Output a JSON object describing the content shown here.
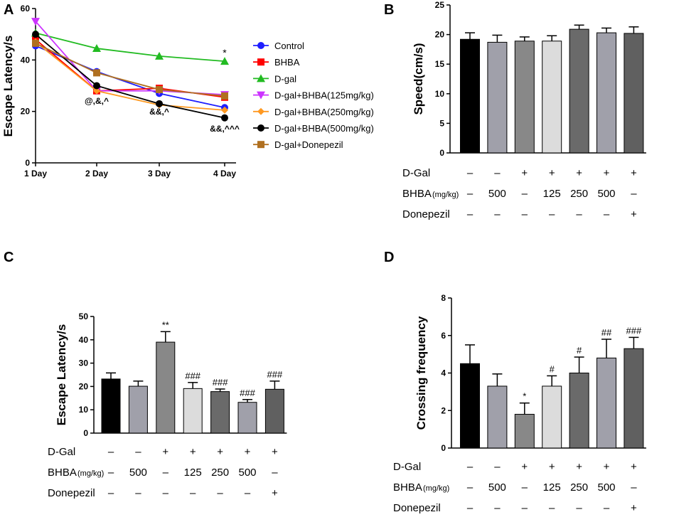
{
  "chart_data": [
    {
      "panel": "A",
      "type": "line",
      "ylabel": "Escape Latency/s",
      "ylim": [
        0,
        60
      ],
      "yticks": [
        "0",
        "20",
        "40",
        "60"
      ],
      "categories": [
        "1 Day",
        "2 Day",
        "3 Day",
        "4 Day"
      ],
      "series": [
        {
          "name": "Control",
          "color": "#1f1fff",
          "marker": "circle",
          "values": [
            45.5,
            35.5,
            27,
            21.5
          ]
        },
        {
          "name": "BHBA",
          "color": "#ff0000",
          "marker": "square",
          "values": [
            48,
            28,
            29,
            25.5
          ]
        },
        {
          "name": "D-gal",
          "color": "#22bb22",
          "marker": "triangle-up",
          "values": [
            50.5,
            44.5,
            41.5,
            39.5
          ]
        },
        {
          "name": "D-gal+BHBA(125mg/kg)",
          "color": "#cc33ff",
          "marker": "triangle-down",
          "values": [
            55,
            28,
            28,
            26.5
          ]
        },
        {
          "name": "D-gal+BHBA(250mg/kg)",
          "color": "#ff9922",
          "marker": "diamond",
          "values": [
            47,
            28,
            22.5,
            20.5
          ]
        },
        {
          "name": "D-gal+BHBA(500mg/kg)",
          "color": "#000000",
          "marker": "circle",
          "values": [
            50,
            30,
            23,
            17.5
          ]
        },
        {
          "name": "D-gal+Donepezil",
          "color": "#b07020",
          "marker": "square",
          "values": [
            46.5,
            35,
            28.5,
            26
          ]
        }
      ],
      "annotations": [
        {
          "text": "@,&,^",
          "category": "2 Day"
        },
        {
          "text": "&&,^",
          "category": "3 Day"
        },
        {
          "text": "&&,^^^",
          "category": "4 Day"
        },
        {
          "text": "*",
          "category": "4 Day"
        }
      ]
    },
    {
      "panel": "B",
      "type": "bar",
      "ylabel": "Speed(cm/s)",
      "ylim": [
        0,
        25
      ],
      "yticks": [
        "0",
        "5",
        "10",
        "15",
        "20",
        "25"
      ],
      "values": [
        19.2,
        18.7,
        18.9,
        18.9,
        20.9,
        20.3,
        20.2
      ],
      "errors": [
        1.1,
        1.2,
        0.7,
        0.9,
        0.7,
        0.8,
        1.1
      ],
      "colors": [
        "#000000",
        "#a0a0aa",
        "#888888",
        "#dcdcdc",
        "#6a6a6a",
        "#a0a0aa",
        "#606060"
      ],
      "significance": [
        "",
        "",
        "",
        "",
        "",
        "",
        ""
      ]
    },
    {
      "panel": "C",
      "type": "bar",
      "ylabel": "Escape Latency/s",
      "ylim": [
        0,
        50
      ],
      "yticks": [
        "0",
        "10",
        "20",
        "30",
        "40",
        "50"
      ],
      "values": [
        23.2,
        20.1,
        39,
        19.1,
        17.8,
        13.2,
        18.8
      ],
      "errors": [
        2.6,
        2.2,
        4.5,
        2.6,
        1.1,
        1.2,
        3.5
      ],
      "colors": [
        "#000000",
        "#a0a0aa",
        "#888888",
        "#dcdcdc",
        "#6a6a6a",
        "#a0a0aa",
        "#606060"
      ],
      "significance": [
        "",
        "",
        "**",
        "###",
        "###",
        "###",
        "###"
      ]
    },
    {
      "panel": "D",
      "type": "bar",
      "ylabel": "Crossing frequency",
      "ylim": [
        0,
        8
      ],
      "yticks": [
        "0",
        "2",
        "4",
        "6",
        "8"
      ],
      "values": [
        4.5,
        3.3,
        1.8,
        3.3,
        4.0,
        4.8,
        5.3
      ],
      "errors": [
        1.0,
        0.65,
        0.6,
        0.55,
        0.85,
        1.0,
        0.6
      ],
      "colors": [
        "#000000",
        "#a0a0aa",
        "#888888",
        "#dcdcdc",
        "#6a6a6a",
        "#a0a0aa",
        "#606060"
      ],
      "significance": [
        "",
        "",
        "*",
        "#",
        "#",
        "##",
        "###"
      ]
    }
  ],
  "treatment_table": {
    "rows": [
      {
        "label": "D-Gal",
        "unit": "",
        "cells": [
          "–",
          "–",
          "+",
          "+",
          "+",
          "+",
          "+"
        ]
      },
      {
        "label": "BHBA",
        "unit": "(mg/kg)",
        "cells": [
          "–",
          "500",
          "–",
          "125",
          "250",
          "500",
          "–"
        ]
      },
      {
        "label": "Donepezil",
        "unit": "",
        "cells": [
          "–",
          "–",
          "–",
          "–",
          "–",
          "–",
          "+"
        ]
      }
    ]
  }
}
